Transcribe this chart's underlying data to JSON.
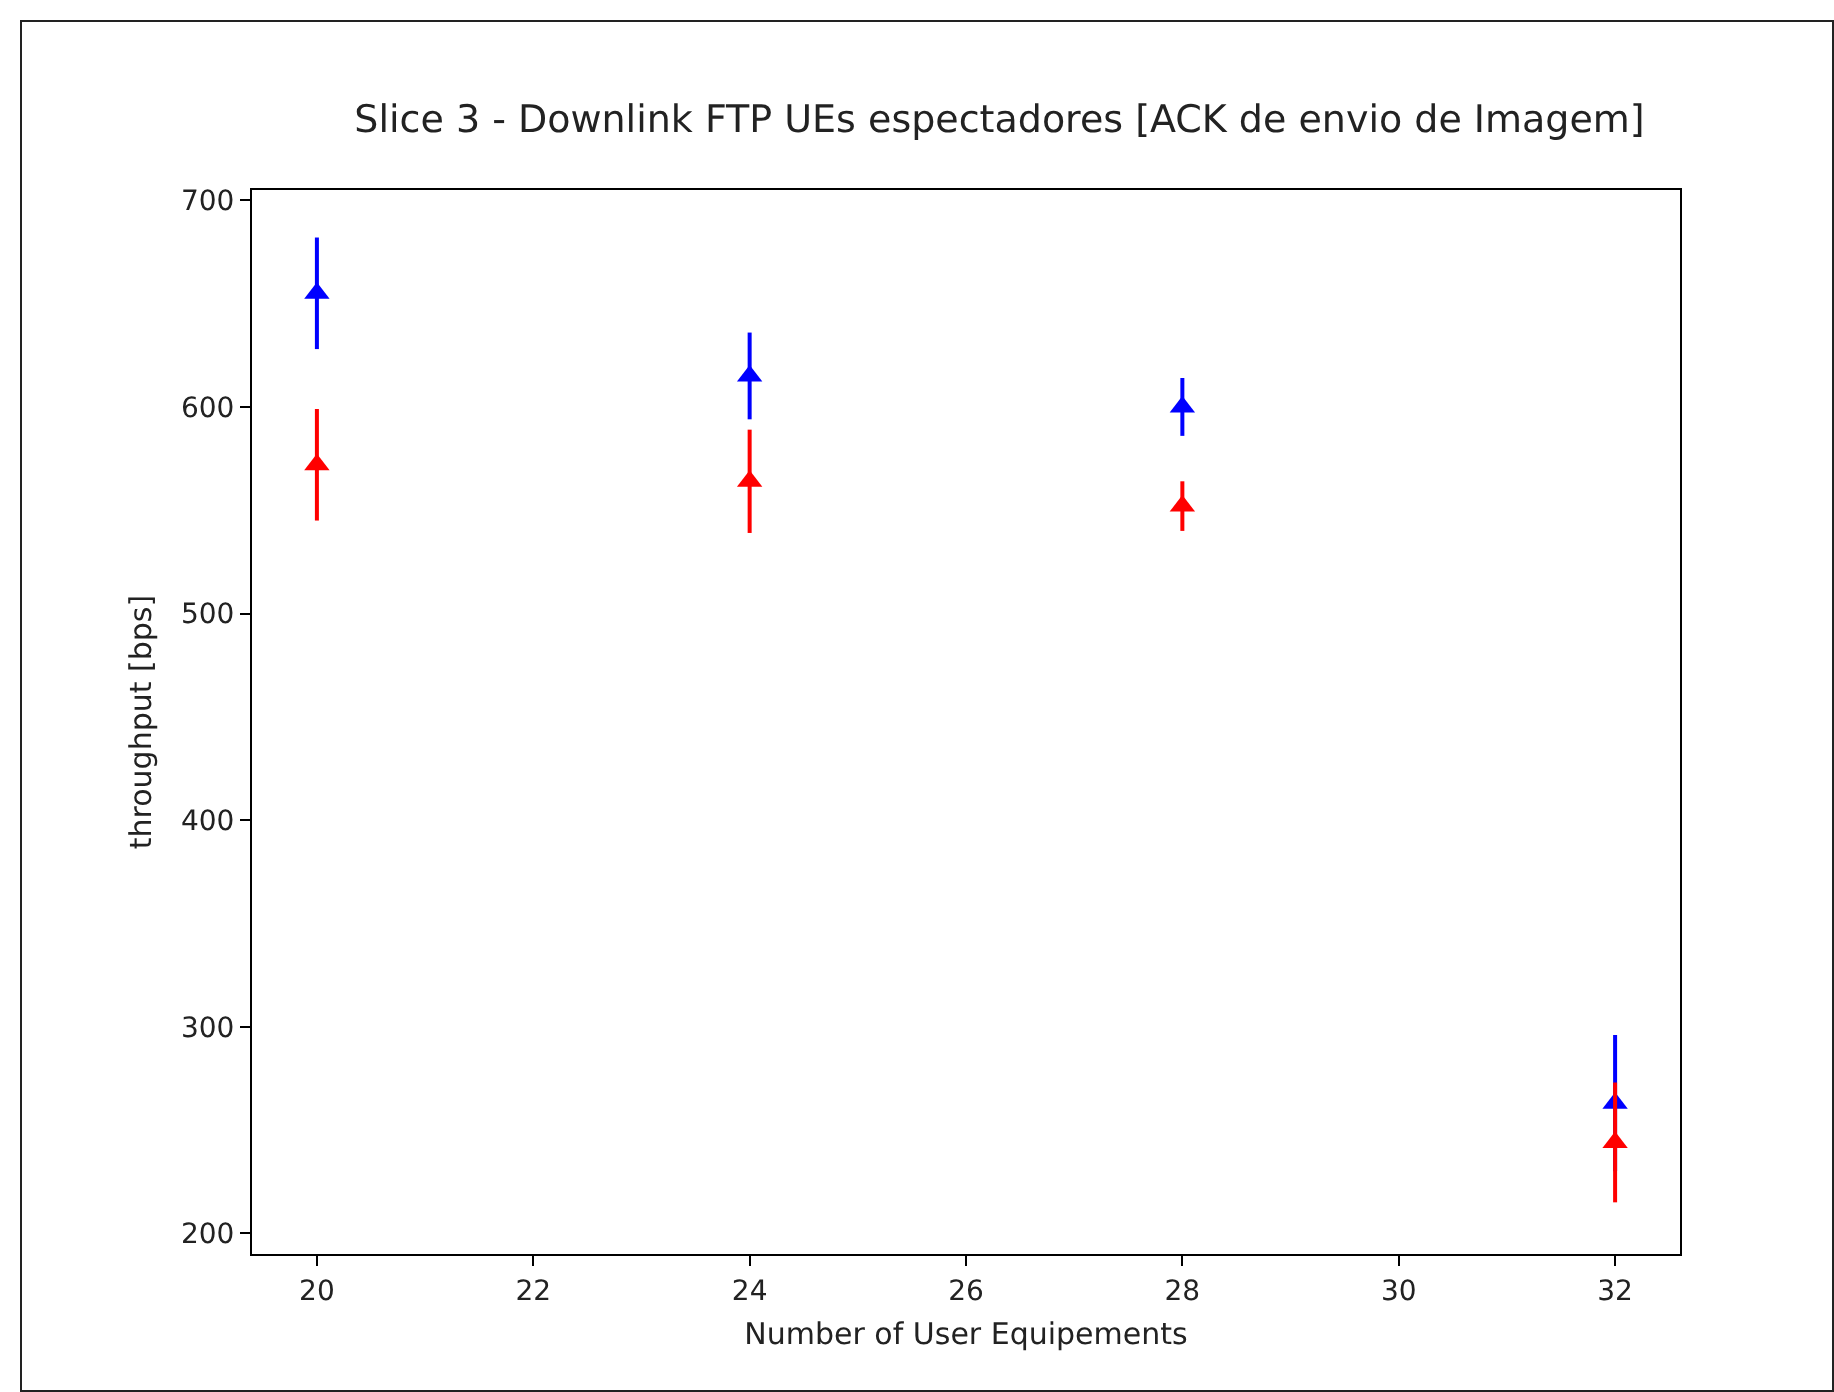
{
  "chart_data": {
    "type": "scatter",
    "title": "Slice 3 - Downlink FTP UEs espectadores [ACK de envio de Imagem]",
    "xlabel": "Number of User Equipements",
    "ylabel": "throughput [bps]",
    "x": [
      20,
      24,
      28,
      32
    ],
    "series": [
      {
        "color": "#0000ff",
        "values": [
          655,
          615,
          600,
          263
        ],
        "errors": [
          27,
          21,
          14,
          33
        ]
      },
      {
        "color": "#ff0000",
        "values": [
          572,
          564,
          552,
          244
        ],
        "errors": [
          27,
          25,
          12,
          29
        ]
      }
    ],
    "marker": "triangle",
    "xlim": [
      19.4,
      32.6
    ],
    "ylim": [
      190,
      705
    ],
    "xticks": [
      20,
      22,
      24,
      26,
      28,
      30,
      32
    ],
    "yticks": [
      200,
      300,
      400,
      500,
      600,
      700
    ]
  }
}
